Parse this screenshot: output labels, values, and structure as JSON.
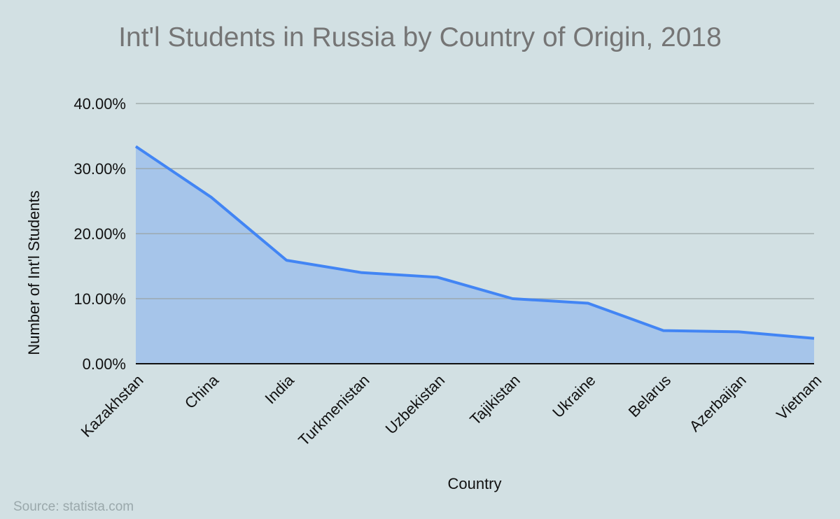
{
  "title": "Int'l Students in Russia by Country of Origin, 2018",
  "source": "Source: statista.com",
  "colors": {
    "background": "#d2e0e3",
    "line": "#4285f4",
    "fill": "#a6c5ea",
    "grid": "#9aa5a5"
  },
  "chart_data": {
    "type": "area",
    "title": "Int'l Students in Russia by Country of Origin, 2018",
    "xlabel": "Country",
    "ylabel": "Number of Int'l Students",
    "categories": [
      "Kazakhstan",
      "China",
      "India",
      "Turkmenistan",
      "Uzbekistan",
      "Tajikistan",
      "Ukraine",
      "Belarus",
      "Azerbaijan",
      "Vietnam"
    ],
    "values": [
      33.4,
      25.6,
      15.9,
      14.0,
      13.3,
      10.0,
      9.3,
      5.1,
      4.9,
      3.9
    ],
    "yticks": [
      "0.00%",
      "10.00%",
      "20.00%",
      "30.00%",
      "40.00%"
    ],
    "ylim": [
      0,
      40
    ],
    "grid": true,
    "legend": "none"
  }
}
